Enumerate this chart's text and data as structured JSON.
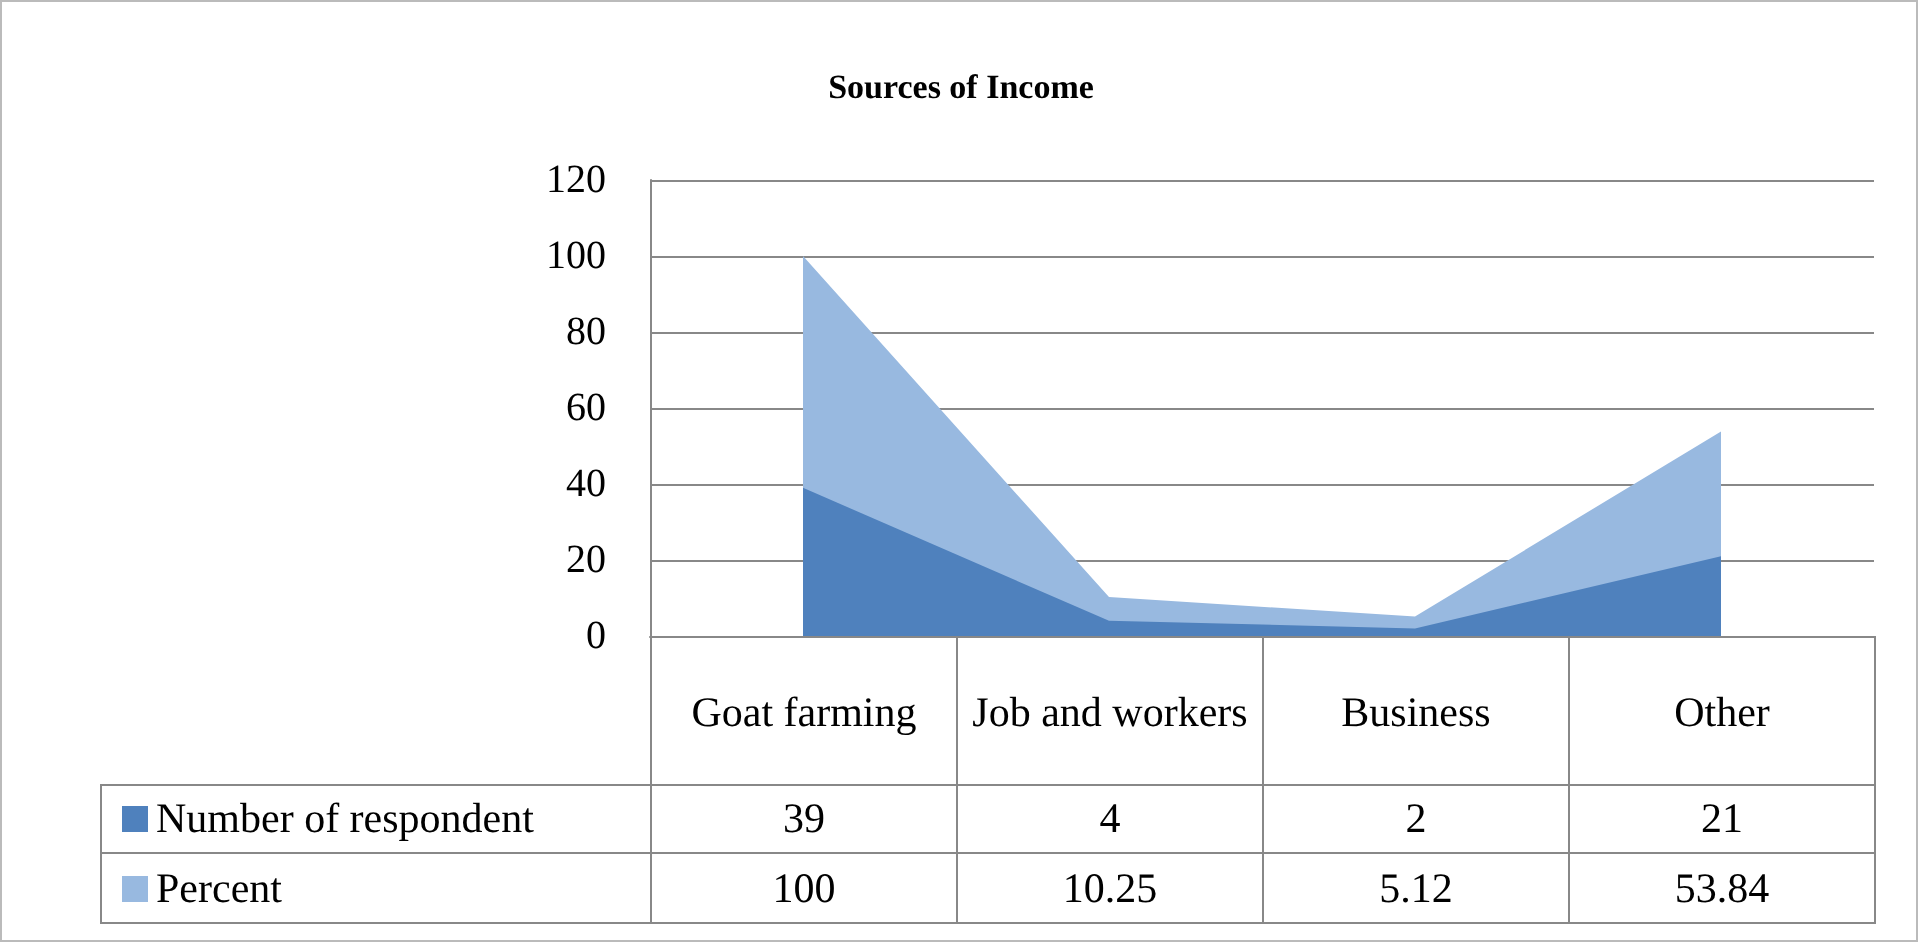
{
  "chart_data": {
    "type": "area",
    "title": "Sources of Income",
    "categories": [
      "Goat farming",
      "Job and workers",
      "Business",
      "Other"
    ],
    "series": [
      {
        "name": "Number of respondent",
        "color": "#4f81bd",
        "values": [
          39,
          4,
          2,
          21
        ]
      },
      {
        "name": "Percent",
        "color": "#98b9e0",
        "values": [
          100,
          10.25,
          5.12,
          53.84
        ]
      }
    ],
    "ylim": [
      0,
      120
    ],
    "yticks": [
      0,
      20,
      40,
      60,
      80,
      100,
      120
    ],
    "grid": "y",
    "data_labels": true,
    "legend": "bottom"
  }
}
